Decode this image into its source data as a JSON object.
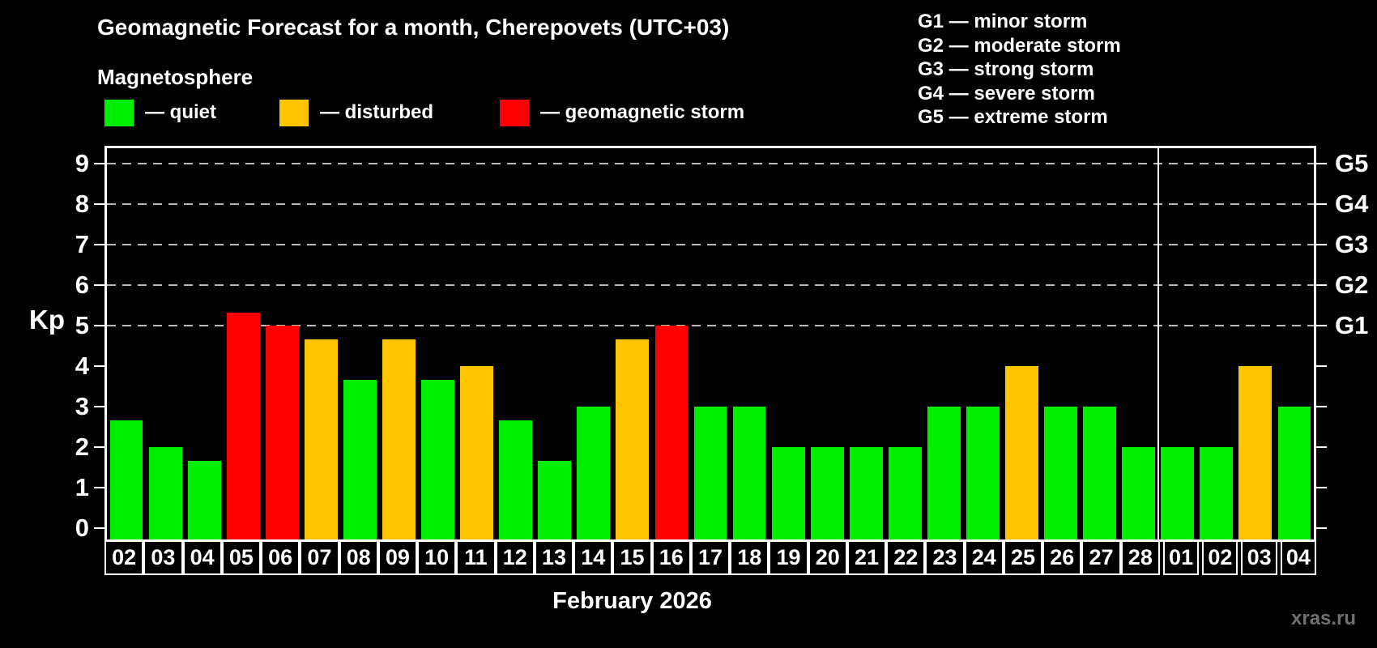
{
  "header": {
    "title": "Geomagnetic Forecast for a month, Cherepovets (UTC+03)",
    "subtitle": "Magnetosphere"
  },
  "legend": {
    "items": [
      {
        "name": "quiet",
        "label": "— quiet",
        "color": "#00ee00"
      },
      {
        "name": "disturbed",
        "label": "— disturbed",
        "color": "#ffc400"
      },
      {
        "name": "storm",
        "label": "— geomagnetic storm",
        "color": "#ff0000"
      }
    ]
  },
  "storm_scale": {
    "lines": [
      "G1 — minor storm",
      "G2 — moderate storm",
      "G3 — strong storm",
      "G4 — severe storm",
      "G5 — extreme storm"
    ]
  },
  "chart_data": {
    "type": "bar",
    "title": "Geomagnetic Forecast for a month, Cherepovets (UTC+03)",
    "ylabel": "Kp",
    "xlabel": "February 2026",
    "ylim": [
      0,
      9
    ],
    "y_ticks": [
      0,
      1,
      2,
      3,
      4,
      5,
      6,
      7,
      8,
      9
    ],
    "grid_levels": [
      5,
      6,
      7,
      8,
      9
    ],
    "grid_style": "dashed",
    "legend_position": "top-left",
    "right_axis": [
      {
        "level": 5,
        "label": "G1"
      },
      {
        "level": 6,
        "label": "G2"
      },
      {
        "level": 7,
        "label": "G3"
      },
      {
        "level": 8,
        "label": "G4"
      },
      {
        "level": 9,
        "label": "G5"
      }
    ],
    "categories": [
      "02",
      "03",
      "04",
      "05",
      "06",
      "07",
      "08",
      "09",
      "10",
      "11",
      "12",
      "13",
      "14",
      "15",
      "16",
      "17",
      "18",
      "19",
      "20",
      "21",
      "22",
      "23",
      "24",
      "25",
      "26",
      "27",
      "28",
      "01",
      "02",
      "03",
      "04"
    ],
    "values": [
      2.67,
      2,
      1.67,
      5.33,
      5,
      4.67,
      3.67,
      4.67,
      3.67,
      4,
      2.67,
      1.67,
      3,
      4.67,
      5,
      3,
      3,
      2,
      2,
      2,
      2,
      3,
      3,
      4,
      3,
      3,
      2,
      2,
      2,
      4,
      3
    ],
    "statuses": [
      "quiet",
      "quiet",
      "quiet",
      "storm",
      "storm",
      "disturbed",
      "quiet",
      "disturbed",
      "quiet",
      "disturbed",
      "quiet",
      "quiet",
      "quiet",
      "disturbed",
      "storm",
      "quiet",
      "quiet",
      "quiet",
      "quiet",
      "quiet",
      "quiet",
      "quiet",
      "quiet",
      "disturbed",
      "quiet",
      "quiet",
      "quiet",
      "quiet",
      "quiet",
      "disturbed",
      "quiet"
    ],
    "status_colors": {
      "quiet": "#00ee00",
      "disturbed": "#ffc400",
      "storm": "#ff0000"
    },
    "month_separator_after_index": 26
  },
  "footer": {
    "month_label": "February 2026",
    "watermark": "xras.ru"
  }
}
